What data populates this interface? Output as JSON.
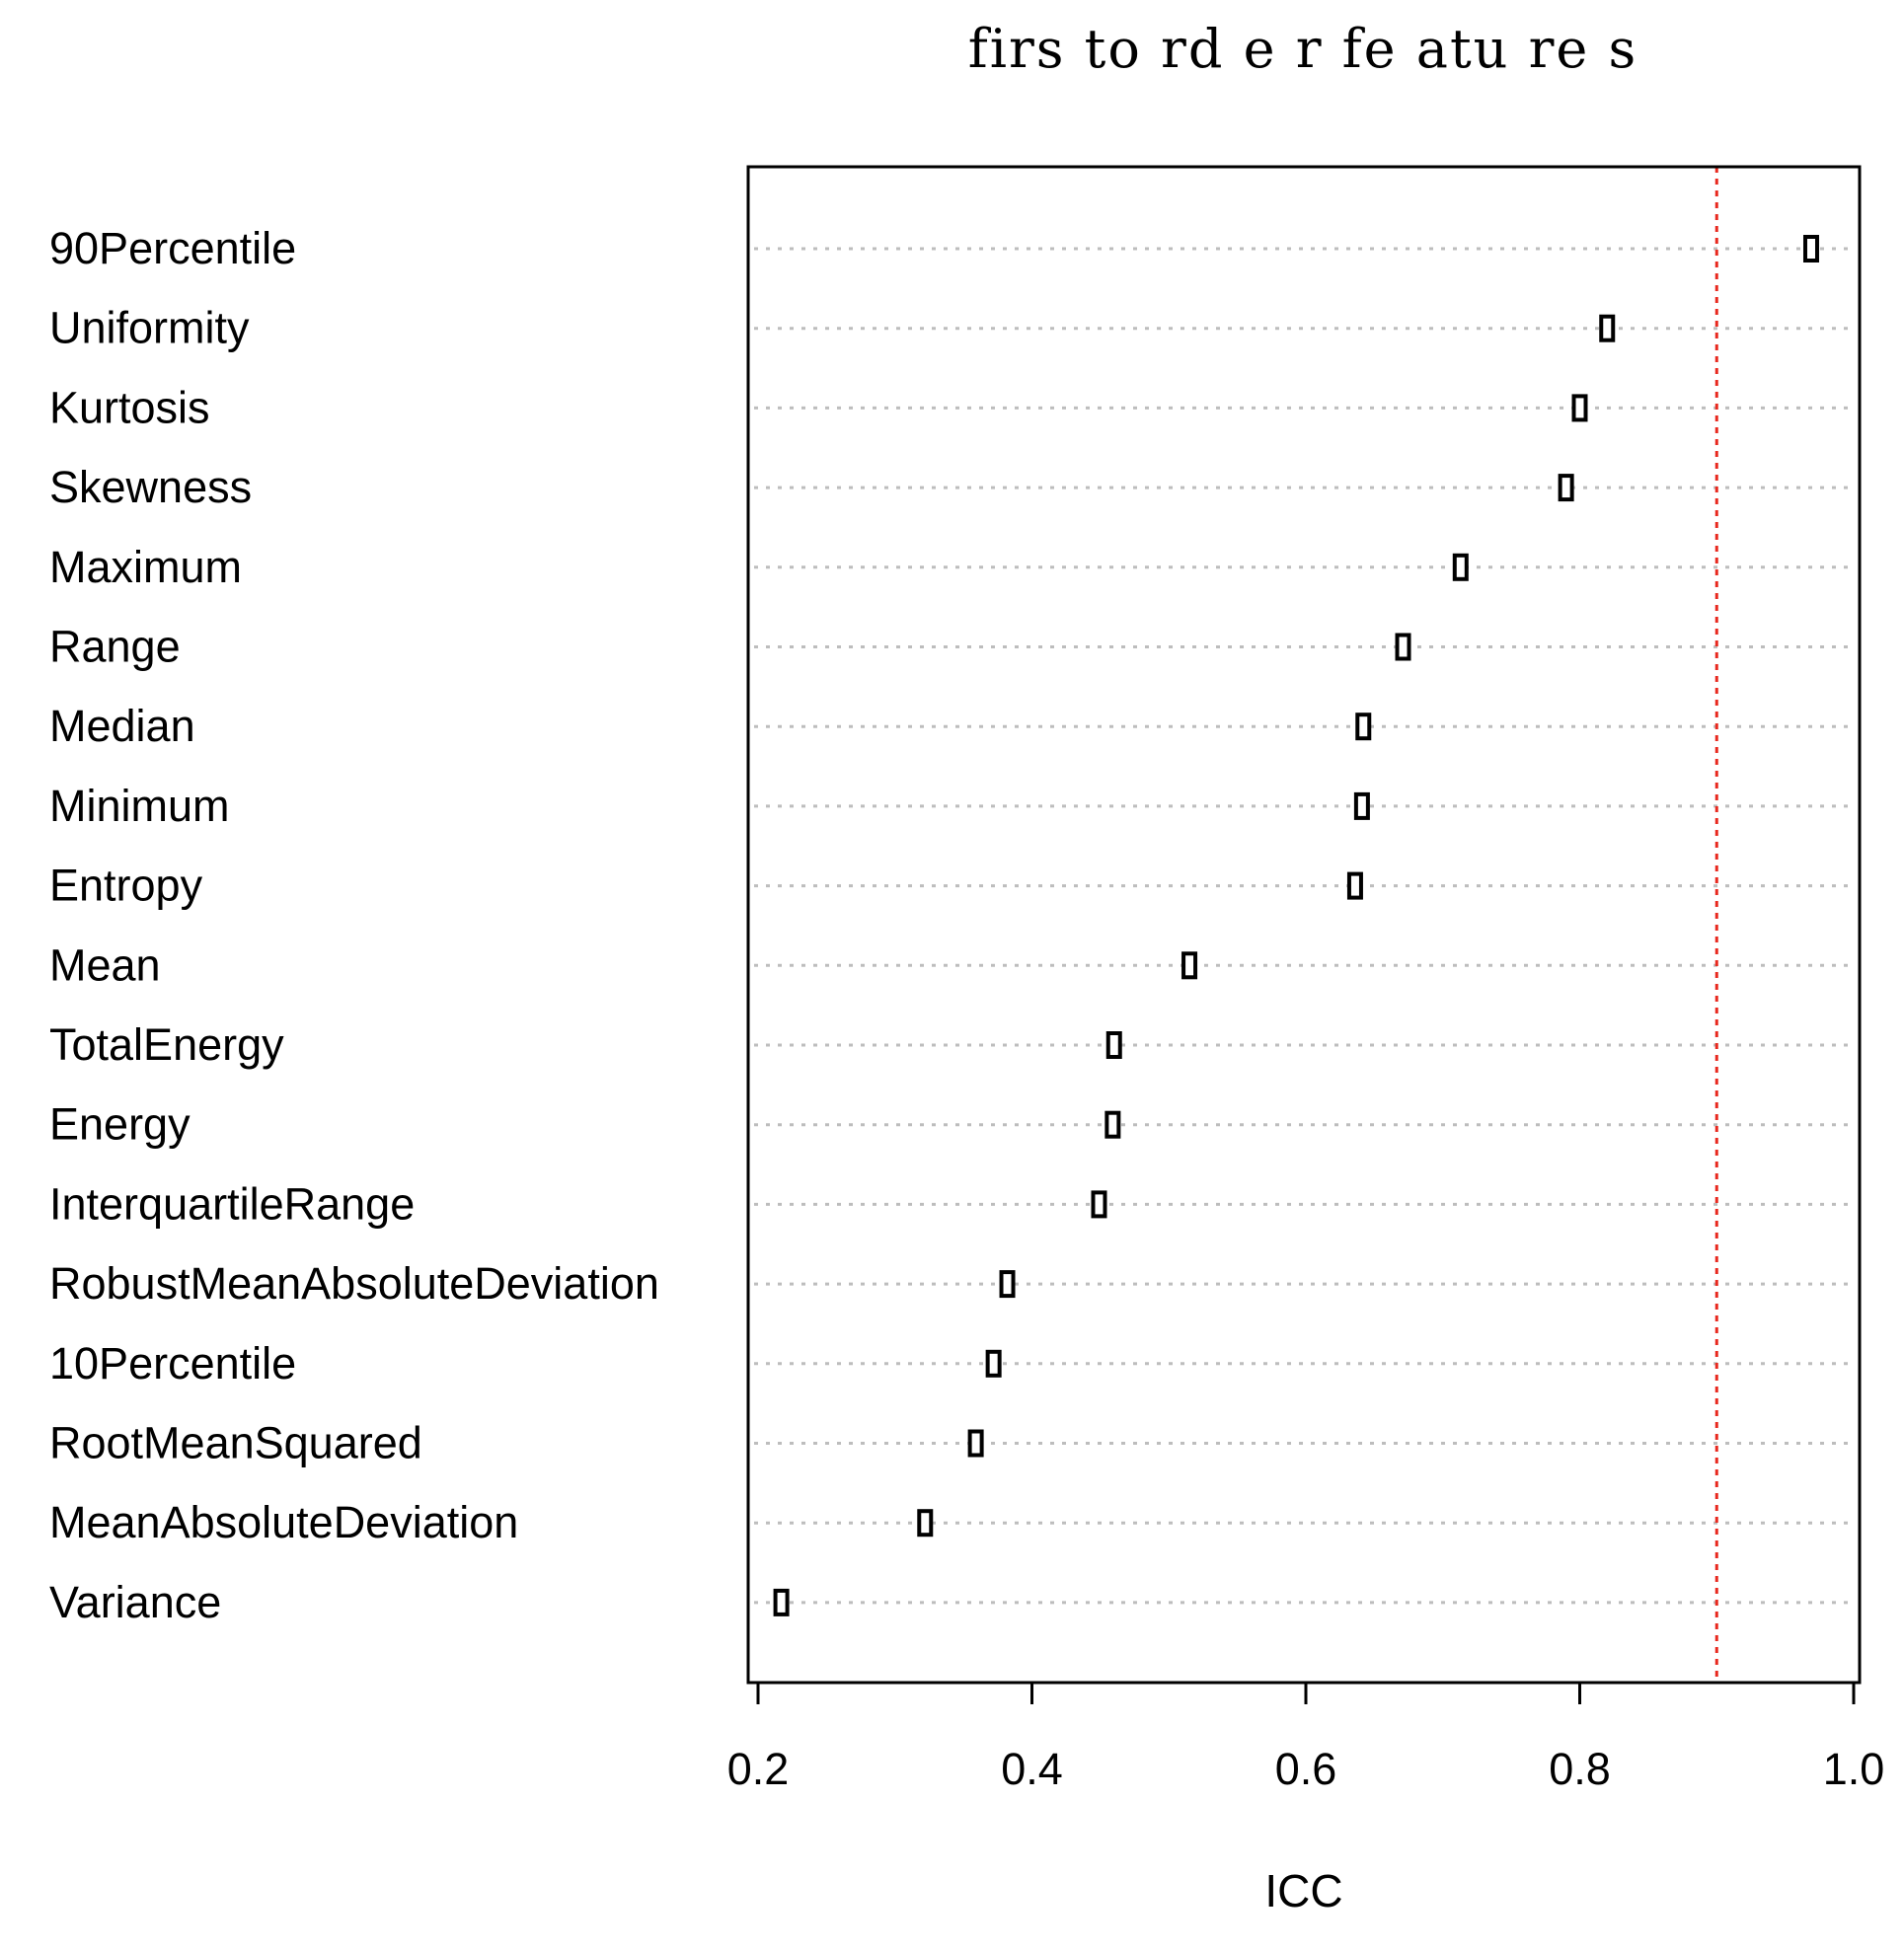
{
  "chart_data": {
    "type": "dotplot",
    "title": "firs to rd e r  fe atu re s",
    "xlabel": "ICC",
    "ylabel": "",
    "xlim": [
      0.2,
      1.0
    ],
    "xticks": [
      0.2,
      0.4,
      0.6,
      0.8,
      1.0
    ],
    "xtick_labels": [
      "0.2",
      "0.4",
      "0.6",
      "0.8",
      "1.0"
    ],
    "reference_line": {
      "x": 0.9,
      "color": "#e8281e",
      "style": "dotted"
    },
    "grid": "horizontal dotted",
    "categories": [
      "90Percentile",
      "Uniformity",
      "Kurtosis",
      "Skewness",
      "Maximum",
      "Range",
      "Median",
      "Minimum",
      "Entropy",
      "Mean",
      "TotalEnergy",
      "Energy",
      "InterquartileRange",
      "RobustMeanAbsoluteDeviation",
      "10Percentile",
      "RootMeanSquared",
      "MeanAbsoluteDeviation",
      "Variance"
    ],
    "values": [
      0.969,
      0.82,
      0.8,
      0.79,
      0.713,
      0.671,
      0.642,
      0.641,
      0.636,
      0.515,
      0.46,
      0.459,
      0.449,
      0.382,
      0.372,
      0.359,
      0.322,
      0.217
    ],
    "marker_color": "#000000",
    "grid_color": "#bdbdbd"
  }
}
